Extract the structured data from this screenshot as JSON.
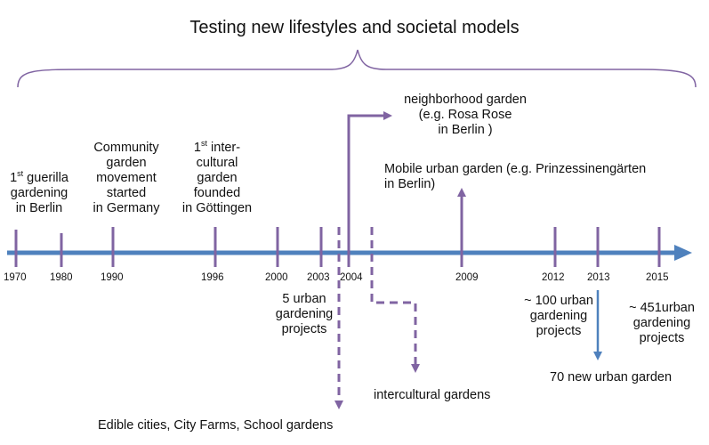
{
  "title": "Testing new lifestyles and societal models",
  "years": [
    "1970",
    "1980",
    "1990",
    "1996",
    "2000",
    "2003",
    "2004",
    "2009",
    "2012",
    "2013",
    "2015"
  ],
  "events": {
    "guerilla": {
      "sup": "st",
      "first": "1",
      "line1_rest": " guerilla",
      "line2": "gardening",
      "line3": "in Berlin"
    },
    "community": {
      "line1": "Community",
      "line2": "garden",
      "line3": "movement",
      "line4": "started",
      "line5": "in Germany"
    },
    "intercultural_first": {
      "first": "1",
      "sup": "st",
      "line1_rest": " inter-",
      "line2": "cultural",
      "line3": "garden",
      "line4": "founded",
      "line5": "in Göttingen"
    },
    "five_projects": {
      "line1": "5 urban",
      "line2": "gardening",
      "line3": "projects"
    },
    "neighborhood": {
      "line1": "neighborhood garden",
      "line2": "(e.g. Rosa Rose",
      "line3": "in Berlin )"
    },
    "mobile": {
      "line1": "Mobile urban garden (e.g. Prinzessinengärten",
      "line2": "in Berlin)"
    },
    "hundred_projects": {
      "line1": "~ 100 urban",
      "line2": "gardening",
      "line3": "projects"
    },
    "seventy_new": "70 new urban garden",
    "four_fifty_one": {
      "line1": "~ 451urban",
      "line2": "gardening",
      "line3": "projects"
    },
    "intercultural_gardens": "intercultural gardens",
    "edible_cities": "Edible cities, City Farms, School gardens"
  },
  "colors": {
    "timeline": "#4F81BD",
    "markers": "#8064A2",
    "text": "#111111"
  }
}
